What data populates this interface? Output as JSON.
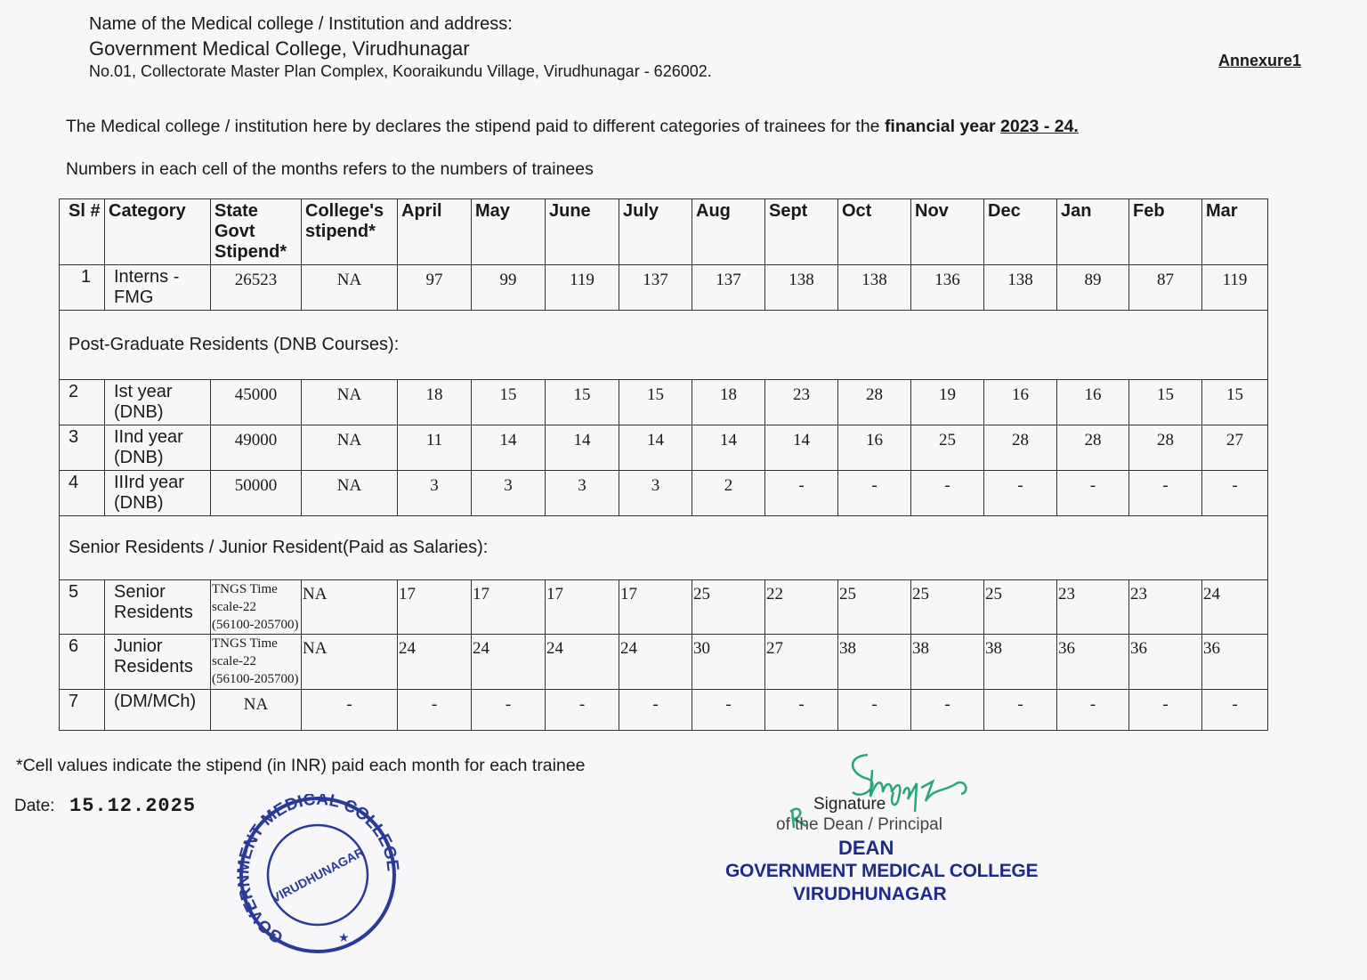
{
  "header": {
    "label": "Name of the Medical college / Institution and address:",
    "college_name": "Government Medical College, Virudhunagar",
    "address": "No.01, Collectorate  Master Plan Complex, Kooraikundu Village, Virudhunagar - 626002.",
    "annexure": "Annexure1"
  },
  "declaration": {
    "text": "The Medical college / institution here by declares the stipend paid to different categories of trainees for the ",
    "bold": "financial year ",
    "year": "2023 - 24."
  },
  "note": "Numbers in each cell of the months refers to the numbers of trainees",
  "table": {
    "headers": [
      "Sl #",
      "Category",
      "State Govt Stipend*",
      "College's stipend*",
      "April",
      "May",
      "June",
      "July",
      "Aug",
      "Sept",
      "Oct",
      "Nov",
      "Dec",
      "Jan",
      "Feb",
      "Mar"
    ],
    "row1": {
      "sl": "1",
      "category": "Interns - FMG",
      "state": "26523",
      "college": "NA",
      "months": [
        "97",
        "99",
        "119",
        "137",
        "137",
        "138",
        "138",
        "136",
        "138",
        "89",
        "87",
        "119"
      ]
    },
    "section_pg": "Post-Graduate Residents (DNB Courses):",
    "row2": {
      "sl": "2",
      "category": "Ist year (DNB)",
      "state": "45000",
      "college": "NA",
      "months": [
        "18",
        "15",
        "15",
        "15",
        "18",
        "23",
        "28",
        "19",
        "16",
        "16",
        "15",
        "15"
      ]
    },
    "row3": {
      "sl": "3",
      "category": "IInd year (DNB)",
      "state": "49000",
      "college": "NA",
      "months": [
        "11",
        "14",
        "14",
        "14",
        "14",
        "14",
        "16",
        "25",
        "28",
        "28",
        "28",
        "27"
      ]
    },
    "row4": {
      "sl": "4",
      "category": "IIIrd year (DNB)",
      "state": "50000",
      "college": "NA",
      "months": [
        "3",
        "3",
        "3",
        "3",
        "2",
        "-",
        "-",
        "-",
        "-",
        "-",
        "-",
        "-"
      ]
    },
    "section_sr": "Senior Residents / Junior Resident(Paid as Salaries):",
    "row5": {
      "sl": "5",
      "category": "Senior Residents",
      "state": "TNGS Time scale-22 (56100-205700)",
      "college": "NA",
      "months": [
        "17",
        "17",
        "17",
        "17",
        "25",
        "22",
        "25",
        "25",
        "25",
        "23",
        "23",
        "24"
      ]
    },
    "row6": {
      "sl": "6",
      "category": "Junior Residents",
      "state": "TNGS Time scale-22 (56100-205700)",
      "college": "NA",
      "months": [
        "24",
        "24",
        "24",
        "24",
        "30",
        "27",
        "38",
        "38",
        "38",
        "36",
        "36",
        "36"
      ]
    },
    "row7": {
      "sl": "7",
      "category": "(DM/MCh)",
      "state": "NA",
      "college": "-",
      "months": [
        "-",
        "-",
        "-",
        "-",
        "-",
        "-",
        "-",
        "-",
        "-",
        "-",
        "-",
        "-"
      ]
    }
  },
  "footer": {
    "footnote": "*Cell values indicate the stipend (in INR) paid each month for each trainee",
    "date_label": "Date:",
    "date_value": "15.12.2025",
    "signature_label": "Signature",
    "signature_sub": "of the Dean / Principal",
    "stamp_dean": "DEAN",
    "stamp_college": "GOVERNMENT MEDICAL COLLEGE",
    "stamp_place": "VIRUDHUNAGAR",
    "seal_outer": "GOVERNMENT MEDICAL COLLEGE",
    "seal_inner": "VIRUDHUNAGAR"
  },
  "colors": {
    "stamp_blue": "#1d2c8a",
    "signature_green": "#2aa57a"
  }
}
